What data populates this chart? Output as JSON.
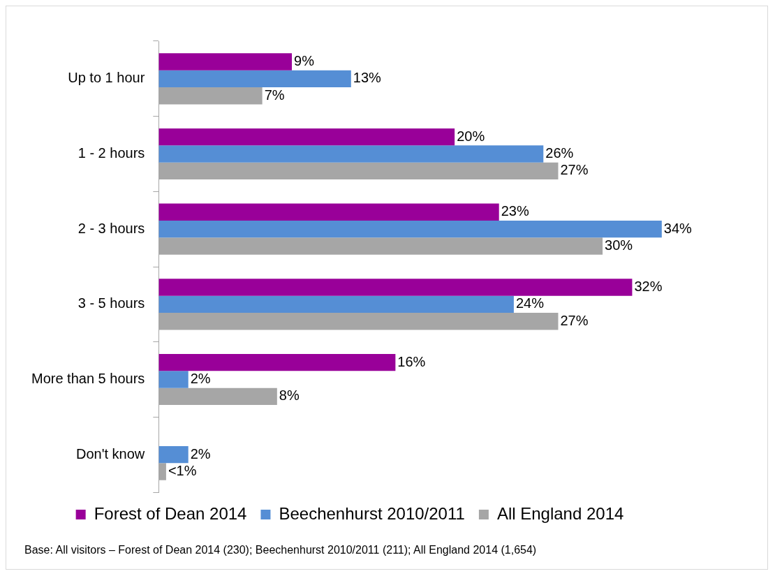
{
  "chart_data": {
    "type": "bar",
    "orientation": "horizontal",
    "categories": [
      "Up to 1 hour",
      "1 - 2 hours",
      "2 - 3 hours",
      "3 - 5 hours",
      "More than 5 hours",
      "Don't know"
    ],
    "series": [
      {
        "name": "Forest of Dean 2014",
        "color": "#990099",
        "values": [
          9,
          20,
          23,
          32,
          16,
          null
        ],
        "value_labels": [
          "9%",
          "20%",
          "23%",
          "32%",
          "16%",
          null
        ]
      },
      {
        "name": "Beechenhurst 2010/2011",
        "color": "#558ed5",
        "values": [
          13,
          26,
          34,
          24,
          2,
          2
        ],
        "value_labels": [
          "13%",
          "26%",
          "34%",
          "24%",
          "2%",
          "2%"
        ]
      },
      {
        "name": "All England 2014",
        "color": "#a6a6a6",
        "values": [
          7,
          27,
          30,
          27,
          8,
          0.5
        ],
        "value_labels": [
          "7%",
          "27%",
          "30%",
          "27%",
          "8%",
          "<1%"
        ]
      }
    ],
    "tick_labels": "y",
    "legend": "bottom",
    "annotations": [
      "Base: All visitors – Forest of Dean 2014 (230); Beechenhurst 2010/2011 (211); All England 2014 (1,654)"
    ]
  }
}
